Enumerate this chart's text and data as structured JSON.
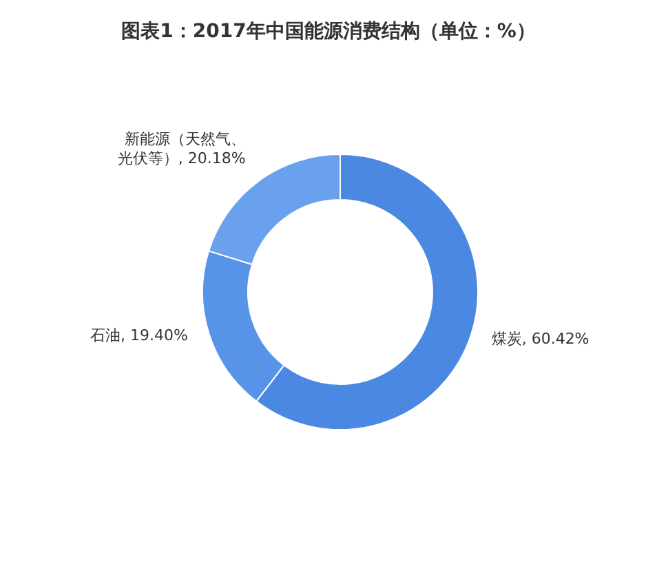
{
  "chart_data": {
    "type": "donut",
    "title": "图表1：2017年中国能源消费结构（单位：%）",
    "categories": [
      "煤炭",
      "石油",
      "新能源（天然气、光伏等）"
    ],
    "values": [
      60.42,
      19.4,
      20.18
    ],
    "value_labels": [
      "60.42%",
      "19.40%",
      "20.18%"
    ],
    "colors": [
      "#4a88e2",
      "#5793e6",
      "#6aa1ec"
    ]
  }
}
